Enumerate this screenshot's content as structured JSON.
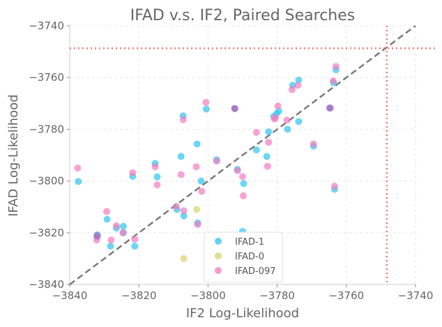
{
  "chart_data": {
    "type": "scatter",
    "title": "IFAD v.s. IF2, Paired Searches",
    "xlabel": "IF2 Log-Likelihood",
    "ylabel": "IFAD Log-Likelihood",
    "xlim": [
      -3840,
      -3740
    ],
    "ylim": [
      -3840,
      -3740
    ],
    "xticks": [
      -3840,
      -3820,
      -3800,
      -3780,
      -3760,
      -3740
    ],
    "yticks": [
      -3840,
      -3820,
      -3800,
      -3780,
      -3760,
      -3740
    ],
    "xtick_labels": [
      "−3840",
      "−3820",
      "−3800",
      "−3780",
      "−3760",
      "−3740"
    ],
    "ytick_labels": [
      "−3840",
      "−3820",
      "−3800",
      "−3780",
      "−3760",
      "−3740"
    ],
    "grid": true,
    "legend_position": "bottom-center",
    "reference_lines": {
      "diagonal": {
        "color": "#7a7a7a",
        "style": "dashed"
      },
      "horizontal_y": -3748.7,
      "vertical_x": -3748.3,
      "color": "#ee7b6f",
      "style": "dotted"
    },
    "series": [
      {
        "name": "IFAD-1",
        "color": "#2ec4f2",
        "points": [
          [
            -3837.5,
            -3800.2
          ],
          [
            -3832.0,
            -3820.8
          ],
          [
            -3829.2,
            -3814.8
          ],
          [
            -3828.2,
            -3825.2
          ],
          [
            -3826.5,
            -3818.2
          ],
          [
            -3824.5,
            -3817.5
          ],
          [
            -3824.5,
            -3820.0
          ],
          [
            -3821.8,
            -3798.2
          ],
          [
            -3821.2,
            -3825.2
          ],
          [
            -3815.3,
            -3793.2
          ],
          [
            -3814.7,
            -3798.4
          ],
          [
            -3809.0,
            -3811.0
          ],
          [
            -3807.8,
            -3790.5
          ],
          [
            -3807.2,
            -3774.8
          ],
          [
            -3807.0,
            -3813.5
          ],
          [
            -3803.2,
            -3785.7
          ],
          [
            -3803.0,
            -3816.2
          ],
          [
            -3802.0,
            -3800.0
          ],
          [
            -3800.5,
            -3772.2
          ],
          [
            -3797.5,
            -3791.8
          ],
          [
            -3791.5,
            -3795.5
          ],
          [
            -3789.7,
            -3801.0
          ],
          [
            -3790.0,
            -3819.5
          ],
          [
            -3786.0,
            -3788.0
          ],
          [
            -3783.0,
            -3790.5
          ],
          [
            -3782.5,
            -3781.0
          ],
          [
            -3781.0,
            -3775.0
          ],
          [
            -3780.2,
            -3774.0
          ],
          [
            -3779.5,
            -3773.0
          ],
          [
            -3777.0,
            -3780.0
          ],
          [
            -3775.5,
            -3763.0
          ],
          [
            -3773.8,
            -3761.0
          ],
          [
            -3773.8,
            -3777.0
          ],
          [
            -3769.5,
            -3786.5
          ],
          [
            -3763.7,
            -3762.0
          ],
          [
            -3763.4,
            -3803.2
          ],
          [
            -3763.0,
            -3757.0
          ]
        ]
      },
      {
        "name": "IFAD-0",
        "color": "#d8d36a",
        "points": [
          [
            -3807.0,
            -3830.0
          ],
          [
            -3803.3,
            -3811.0
          ]
        ]
      },
      {
        "name": "IFAD-097",
        "color": "#f57ac0",
        "points": [
          [
            -3837.7,
            -3795.0
          ],
          [
            -3832.2,
            -3822.8
          ],
          [
            -3832.0,
            -3821.5
          ],
          [
            -3829.3,
            -3811.8
          ],
          [
            -3828.0,
            -3822.8
          ],
          [
            -3826.5,
            -3817.3
          ],
          [
            -3824.6,
            -3820.0
          ],
          [
            -3821.8,
            -3796.8
          ],
          [
            -3821.2,
            -3822.5
          ],
          [
            -3815.3,
            -3794.5
          ],
          [
            -3814.7,
            -3801.5
          ],
          [
            -3809.2,
            -3809.8
          ],
          [
            -3807.8,
            -3797.5
          ],
          [
            -3807.2,
            -3776.3
          ],
          [
            -3807.0,
            -3811.5
          ],
          [
            -3803.4,
            -3794.5
          ],
          [
            -3803.0,
            -3816.8
          ],
          [
            -3801.8,
            -3804.0
          ],
          [
            -3800.6,
            -3769.6
          ],
          [
            -3797.5,
            -3792.3
          ],
          [
            -3792.2,
            -3772.0
          ],
          [
            -3791.5,
            -3796.0
          ],
          [
            -3790.0,
            -3798.3
          ],
          [
            -3789.8,
            -3805.7
          ],
          [
            -3786.0,
            -3781.2
          ],
          [
            -3782.8,
            -3794.3
          ],
          [
            -3782.5,
            -3785.0
          ],
          [
            -3780.8,
            -3776.0
          ],
          [
            -3780.5,
            -3775.5
          ],
          [
            -3779.8,
            -3771.0
          ],
          [
            -3777.2,
            -3776.5
          ],
          [
            -3775.7,
            -3764.7
          ],
          [
            -3774.0,
            -3763.0
          ],
          [
            -3769.5,
            -3785.7
          ],
          [
            -3764.6,
            -3771.8
          ],
          [
            -3763.8,
            -3761.3
          ],
          [
            -3763.4,
            -3802.0
          ],
          [
            -3763.0,
            -3755.7
          ]
        ]
      }
    ],
    "overlap_points": [
      {
        "color": "#a27ac6",
        "points": [
          [
            -3792.3,
            -3772.0
          ],
          [
            -3764.8,
            -3771.8
          ],
          [
            -3832.1,
            -3821.2
          ]
        ]
      }
    ]
  }
}
